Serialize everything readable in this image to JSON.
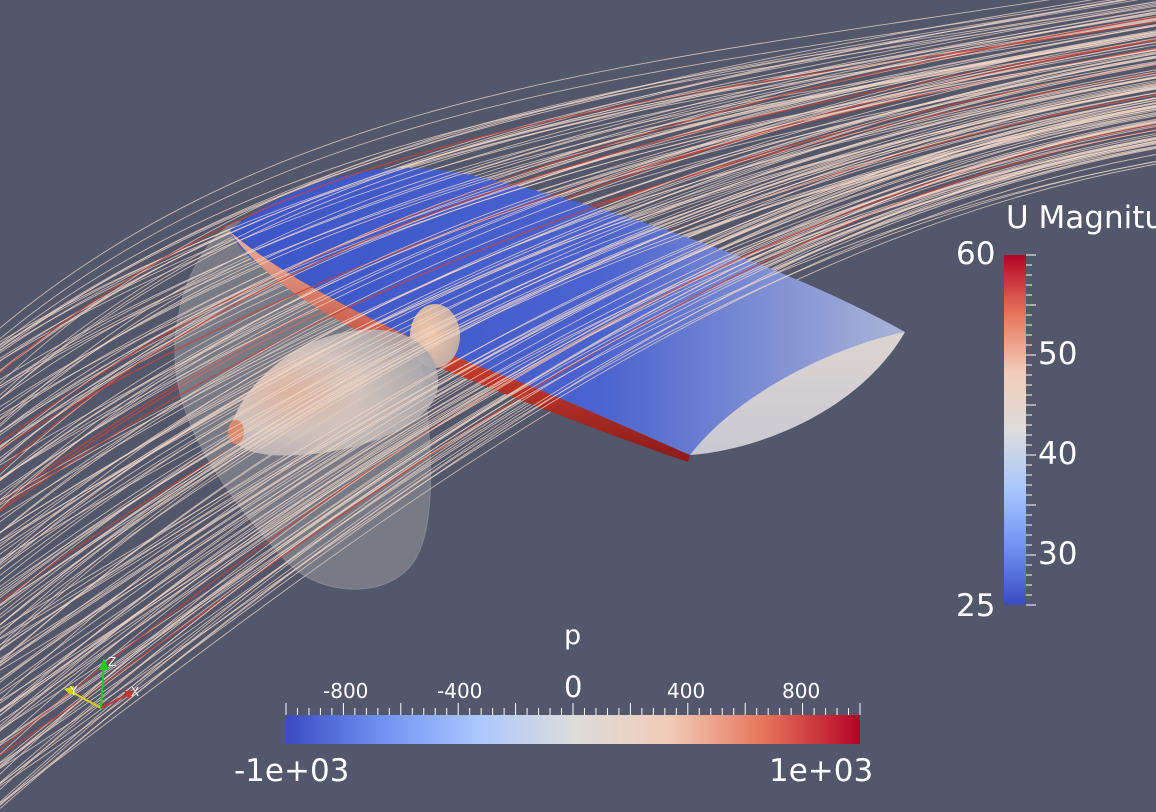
{
  "scene": {
    "background_color": "#52576b",
    "streamline_color": "#f3d8c8",
    "streamline_hot_color": "#c8443a",
    "surface_icons": [
      "wing-surface",
      "fuselage-body",
      "propeller-disk",
      "streamlines"
    ]
  },
  "u_legend": {
    "title": "U Magnitu",
    "max_label": "60",
    "min_label": "25",
    "ticks": [
      "50",
      "40",
      "30"
    ],
    "colormap": [
      "#b40426",
      "#e7745b",
      "#f2cbb7",
      "#dddcdc",
      "#aac7fd",
      "#7092f3",
      "#3b4cc0"
    ]
  },
  "p_legend": {
    "title": "p",
    "minor_ticks": [
      "-800",
      "-400",
      "400",
      "800"
    ],
    "zero_label": "0",
    "min_label": "-1e+03",
    "max_label": "1e+03",
    "colormap": [
      "#3b4cc0",
      "#7092f3",
      "#aac7fd",
      "#dddcdc",
      "#f2cbb7",
      "#e7745b",
      "#b40426"
    ]
  },
  "axes_widget": {
    "labels": [
      "Y",
      "Z",
      "X"
    ],
    "colors": {
      "x": "#cc3333",
      "y": "#d4d400",
      "z": "#22cc22"
    }
  }
}
